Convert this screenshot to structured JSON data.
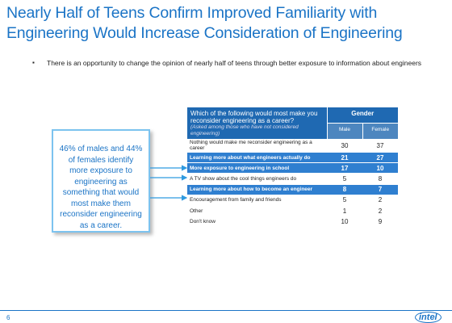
{
  "header": {
    "title": "Nearly Half of Teens Confirm Improved Familiarity with Engineering Would Increase Consideration of  Engineering"
  },
  "bullet": "There is an opportunity to change the opinion of nearly half of teens through better exposure to information about engineers",
  "callout": "46% of males and 44% of females identify more exposure to engineering as something that would most make them reconsider engineering as a career.",
  "table": {
    "question": "Which of the following would most make you reconsider engineering as a career?",
    "note": "(Asked among those who have not considered engineering)",
    "group": "Gender",
    "columns": [
      "Male",
      "Female"
    ],
    "rows": [
      {
        "label": "Nothing would make me reconsider engineering as a career",
        "male": "30",
        "female": "37",
        "highlight": false
      },
      {
        "label": "Learning more about what engineers actually do",
        "male": "21",
        "female": "27",
        "highlight": true
      },
      {
        "label": "More exposure to engineering in school",
        "male": "17",
        "female": "10",
        "highlight": true
      },
      {
        "label": "A TV show about the cool things engineers do",
        "male": "5",
        "female": "8",
        "highlight": false
      },
      {
        "label": "Learning more about how to become an engineer",
        "male": "8",
        "female": "7",
        "highlight": true
      },
      {
        "label": "Encouragement from family and friends",
        "male": "5",
        "female": "2",
        "highlight": false
      },
      {
        "label": "Other",
        "male": "1",
        "female": "2",
        "highlight": false
      },
      {
        "label": "Don't know",
        "male": "10",
        "female": "9",
        "highlight": false
      }
    ]
  },
  "footer": {
    "page": "6",
    "logo": "intel"
  }
}
